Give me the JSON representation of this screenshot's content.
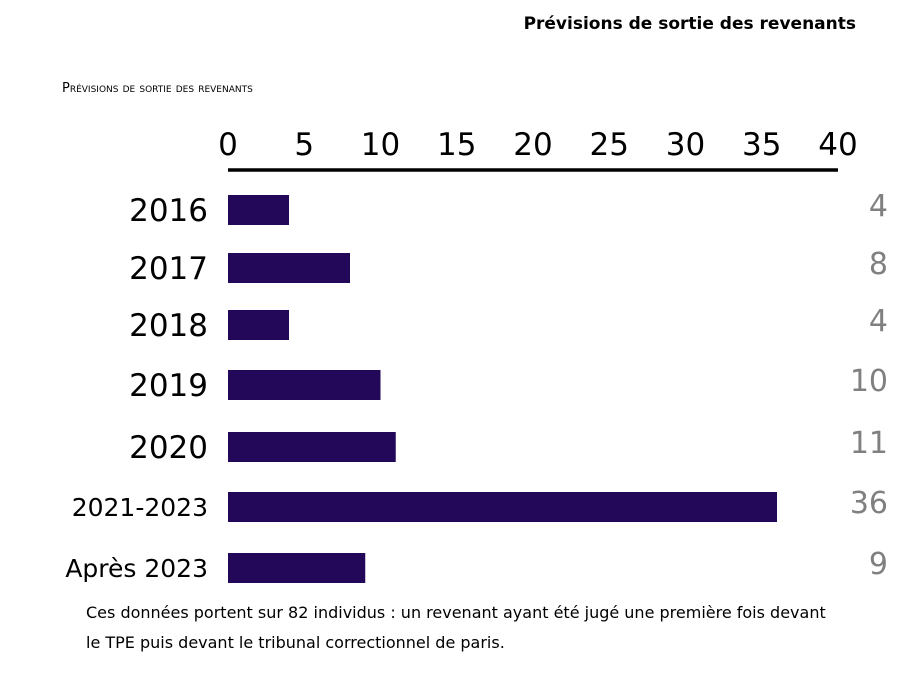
{
  "header": {
    "title": "Prévisions de sortie des revenants"
  },
  "chart_label": "Prévisions de sortie des revenants",
  "footnote": "Ces données portent sur 82 individus : un revenant ayant été jugé une première fois devant le TPE puis devant le tribunal correctionnel de paris.",
  "colors": {
    "bar": "#230859",
    "value_label": "#808080",
    "axis": "#000000"
  },
  "chart_data": {
    "type": "bar",
    "orientation": "horizontal",
    "categories": [
      "2016",
      "2017",
      "2018",
      "2019",
      "2020",
      "2021-2023",
      "Après 2023"
    ],
    "values": [
      4,
      8,
      4,
      10,
      11,
      36,
      9
    ],
    "xlim": [
      0,
      40
    ],
    "x_ticks": [
      0,
      5,
      10,
      15,
      20,
      25,
      30,
      35,
      40
    ],
    "axis_position": "top",
    "grid": false,
    "legend": "none"
  }
}
